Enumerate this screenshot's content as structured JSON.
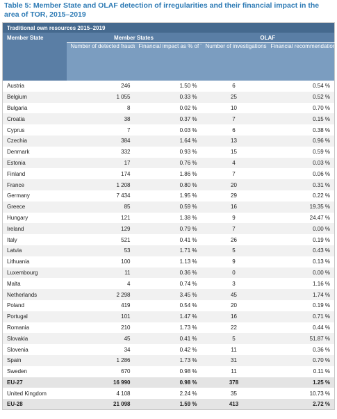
{
  "title": "Table 5: Member State and OLAF detection of irregularities and their financial impact in the area of TOR, 2015–2019",
  "table": {
    "caption": "Traditional own resources 2015–2019",
    "groups": [
      "Member State",
      "Member States",
      "OLAF"
    ],
    "columns": [
      "Number of detected fraudulent and non-fraudulent irregularities",
      "Financial impact as % of TOR collected",
      "Number of investigations closed with recommendations",
      "Financial recommendations as % of TOR collected"
    ],
    "rows": [
      [
        "Austria",
        "246",
        "1.50 %",
        "6",
        "0.54 %"
      ],
      [
        "Belgium",
        "1 055",
        "0.33 %",
        "25",
        "0.52 %"
      ],
      [
        "Bulgaria",
        "8",
        "0.02 %",
        "10",
        "0.70 %"
      ],
      [
        "Croatia",
        "38",
        "0.37 %",
        "7",
        "0.15 %"
      ],
      [
        "Cyprus",
        "7",
        "0.03 %",
        "6",
        "0.38 %"
      ],
      [
        "Czechia",
        "384",
        "1.64 %",
        "13",
        "0.96 %"
      ],
      [
        "Denmark",
        "332",
        "0.93 %",
        "15",
        "0.59 %"
      ],
      [
        "Estonia",
        "17",
        "0.76 %",
        "4",
        "0.03 %"
      ],
      [
        "Finland",
        "174",
        "1.86 %",
        "7",
        "0.06 %"
      ],
      [
        "France",
        "1 208",
        "0.80 %",
        "20",
        "0.31 %"
      ],
      [
        "Germany",
        "7 434",
        "1.95 %",
        "29",
        "0.22 %"
      ],
      [
        "Greece",
        "85",
        "0.59 %",
        "16",
        "19.35 %"
      ],
      [
        "Hungary",
        "121",
        "1.38 %",
        "9",
        "24.47 %"
      ],
      [
        "Ireland",
        "129",
        "0.79 %",
        "7",
        "0.00 %"
      ],
      [
        "Italy",
        "521",
        "0.41 %",
        "26",
        "0.19 %"
      ],
      [
        "Latvia",
        "53",
        "1.71 %",
        "5",
        "0.43 %"
      ],
      [
        "Lithuania",
        "100",
        "1.13 %",
        "9",
        "0.13 %"
      ],
      [
        "Luxembourg",
        "11",
        "0.36 %",
        "0",
        "0.00 %"
      ],
      [
        "Malta",
        "4",
        "0.74 %",
        "3",
        "1.16 %"
      ],
      [
        "Netherlands",
        "2 298",
        "3.45 %",
        "45",
        "1.74 %"
      ],
      [
        "Poland",
        "419",
        "0.54 %",
        "20",
        "0.19 %"
      ],
      [
        "Portugal",
        "101",
        "1.47 %",
        "16",
        "0.71 %"
      ],
      [
        "Romania",
        "210",
        "1.73 %",
        "22",
        "0.44 %"
      ],
      [
        "Slovakia",
        "45",
        "0.41 %",
        "5",
        "51.87 %"
      ],
      [
        "Slovenia",
        "34",
        "0.42 %",
        "11",
        "0.36 %"
      ],
      [
        "Spain",
        "1 286",
        "1.73 %",
        "31",
        "0.70 %"
      ],
      [
        "Sweden",
        "670",
        "0.98 %",
        "11",
        "0.11 %"
      ],
      [
        "EU-27",
        "16 990",
        "0.98 %",
        "378",
        "1.25 %"
      ],
      [
        "United Kingdom",
        "4 108",
        "2.24 %",
        "35",
        "10.73 %"
      ],
      [
        "EU-28",
        "21 098",
        "1.59 %",
        "413",
        "2.72 %"
      ]
    ]
  }
}
